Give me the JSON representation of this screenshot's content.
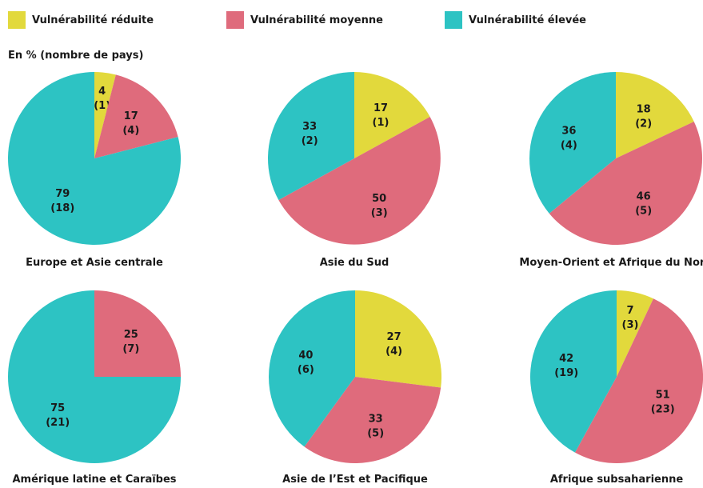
{
  "legend": {
    "items": [
      {
        "label": "Vulnérabilité réduite",
        "color": "#e2d93c"
      },
      {
        "label": "Vulnérabilité moyenne",
        "color": "#df6b7c"
      },
      {
        "label": "Vulnérabilité élevée",
        "color": "#2dc3c3"
      }
    ]
  },
  "unit_label": "En % (nombre de pays)",
  "chart_data": [
    {
      "type": "pie",
      "title": "Europe et Asie centrale",
      "categories": [
        "Vulnérabilité réduite",
        "Vulnérabilité moyenne",
        "Vulnérabilité élevée"
      ],
      "values": [
        4,
        17,
        79
      ],
      "counts": [
        1,
        4,
        18
      ]
    },
    {
      "type": "pie",
      "title": "Asie du Sud",
      "categories": [
        "Vulnérabilité réduite",
        "Vulnérabilité moyenne",
        "Vulnérabilité élevée"
      ],
      "values": [
        17,
        50,
        33
      ],
      "counts": [
        1,
        3,
        2
      ]
    },
    {
      "type": "pie",
      "title": "Moyen-Orient et Afrique du Nord",
      "categories": [
        "Vulnérabilité réduite",
        "Vulnérabilité moyenne",
        "Vulnérabilité élevée"
      ],
      "values": [
        18,
        46,
        36
      ],
      "counts": [
        2,
        5,
        4
      ]
    },
    {
      "type": "pie",
      "title": "Amérique latine et Caraïbes",
      "categories": [
        "Vulnérabilité moyenne",
        "Vulnérabilité élevée"
      ],
      "values": [
        25,
        75
      ],
      "counts": [
        7,
        21
      ]
    },
    {
      "type": "pie",
      "title": "Asie de l’Est et Pacifique",
      "categories": [
        "Vulnérabilité réduite",
        "Vulnérabilité moyenne",
        "Vulnérabilité élevée"
      ],
      "values": [
        27,
        33,
        40
      ],
      "counts": [
        4,
        5,
        6
      ]
    },
    {
      "type": "pie",
      "title": "Afrique subsaharienne",
      "categories": [
        "Vulnérabilité réduite",
        "Vulnérabilité moyenne",
        "Vulnérabilité élevée"
      ],
      "values": [
        7,
        51,
        42
      ],
      "counts": [
        3,
        23,
        19
      ]
    }
  ]
}
